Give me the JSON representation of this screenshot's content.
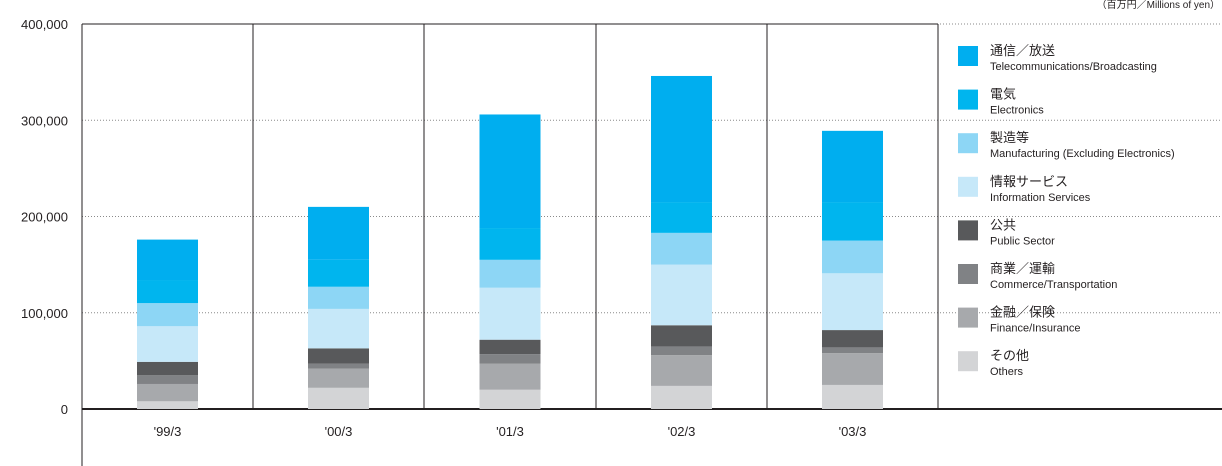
{
  "chart_data": {
    "type": "bar",
    "stacked": true,
    "unit_label": "（百万円／Millions of yen）",
    "categories": [
      "'99/3",
      "'00/3",
      "'01/3",
      "'02/3",
      "'03/3"
    ],
    "series": [
      {
        "name": "その他",
        "name_en": "Others",
        "color": "#d3d4d6",
        "values": [
          8000,
          22000,
          20000,
          24000,
          25000
        ]
      },
      {
        "name": "金融／保険",
        "name_en": "Finance/Insurance",
        "color": "#a7a9ac",
        "values": [
          18000,
          20000,
          27000,
          32000,
          33000
        ]
      },
      {
        "name": "商業／運輸",
        "name_en": "Commerce/Transportation",
        "color": "#808285",
        "values": [
          9000,
          5000,
          10000,
          9000,
          6000
        ]
      },
      {
        "name": "公共",
        "name_en": "Public Sector",
        "color": "#58595b",
        "values": [
          14000,
          16000,
          15000,
          22000,
          18000
        ]
      },
      {
        "name": "情報サービス",
        "name_en": "Information Services",
        "color": "#c6e8f9",
        "values": [
          37000,
          41000,
          54000,
          63000,
          59000
        ]
      },
      {
        "name": "製造等",
        "name_en": "Manufacturing (Excluding Electronics)",
        "color": "#8dd6f5",
        "values": [
          24000,
          23000,
          29000,
          33000,
          34000
        ]
      },
      {
        "name": "電気",
        "name_en": "Electronics",
        "color": "#00b5ee",
        "values": [
          24000,
          28000,
          33000,
          32000,
          40000
        ]
      },
      {
        "name": "通信／放送",
        "name_en": "Telecommunications/Broadcasting",
        "color": "#00aeef",
        "values": [
          42000,
          55000,
          118000,
          131000,
          74000
        ]
      }
    ],
    "ylim": [
      0,
      400000
    ],
    "yticks": [
      0,
      100000,
      200000,
      300000,
      400000
    ],
    "ytick_labels": [
      "0",
      "100,000",
      "200,000",
      "300,000",
      "400,000"
    ],
    "grid": "horizontal-dotted",
    "legend_position": "right",
    "legend_order": [
      "通信／放送",
      "電気",
      "製造等",
      "情報サービス",
      "公共",
      "商業／運輸",
      "金融／保険",
      "その他"
    ]
  }
}
